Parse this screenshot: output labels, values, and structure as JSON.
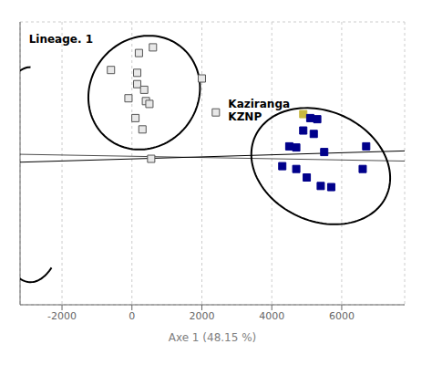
{
  "chart_data": {
    "type": "scatter",
    "xlabel": "Axe 1 (48.15 %)",
    "xlim": [
      -3200,
      7800
    ],
    "ylim": [
      -2600,
      2400
    ],
    "xticks": [
      -2000,
      0,
      2000,
      4000,
      6000
    ],
    "yticks": [
      -2500,
      -2000,
      -1500,
      -1000,
      -500,
      0,
      500,
      1000,
      1500,
      2000
    ],
    "grid": true,
    "tick_labels": "x",
    "series": [
      {
        "color": "#555555",
        "marker": "square",
        "values": [
          [
            200,
            1850
          ],
          [
            600,
            1950
          ],
          [
            -600,
            1550
          ],
          [
            150,
            1500
          ],
          [
            150,
            1300
          ],
          [
            350,
            1200
          ],
          [
            -100,
            1050
          ],
          [
            400,
            1000
          ],
          [
            500,
            950
          ],
          [
            100,
            700
          ],
          [
            300,
            500
          ],
          [
            2000,
            1400
          ],
          [
            2400,
            800
          ]
        ]
      },
      {
        "color": "#555555",
        "marker": "square",
        "values": [
          [
            550,
            -20
          ]
        ]
      },
      {
        "color": "#c8b840",
        "marker": "square",
        "values": [
          [
            4900,
            770
          ]
        ]
      },
      {
        "color": "#00008B",
        "marker": "square",
        "values": [
          [
            5100,
            700
          ],
          [
            5300,
            680
          ],
          [
            4900,
            480
          ],
          [
            5200,
            420
          ],
          [
            4500,
            200
          ],
          [
            4700,
            180
          ],
          [
            5500,
            100
          ],
          [
            4300,
            -150
          ],
          [
            4700,
            -200
          ],
          [
            5000,
            -350
          ],
          [
            5400,
            -500
          ],
          [
            5700,
            -520
          ],
          [
            6600,
            -200
          ],
          [
            6700,
            200
          ]
        ]
      }
    ],
    "ellipses": [
      {
        "cx": 350,
        "cy": 1150,
        "width": 3200,
        "height": 2000,
        "angle": 5
      },
      {
        "cx": 5400,
        "cy": -150,
        "width": 4000,
        "height": 2000,
        "angle": -8
      }
    ],
    "arc": {
      "cx": -2900,
      "cy": -300,
      "width": 2400,
      "height": 3800,
      "theta1": 90,
      "theta2": 300
    },
    "lines": [
      {
        "x": [
          -3200,
          7800
        ],
        "y": [
          -80,
          120
        ]
      },
      {
        "x": [
          -3200,
          7800
        ],
        "y": [
          60,
          -60
        ]
      }
    ],
    "annotations": [
      {
        "text": "Lineage. 1",
        "x": -3000,
        "y": 2100
      },
      {
        "text": "Kaziranga",
        "x": 2700,
        "y": 950
      },
      {
        "text": "KZNP",
        "x": 2700,
        "y": 720
      }
    ]
  }
}
